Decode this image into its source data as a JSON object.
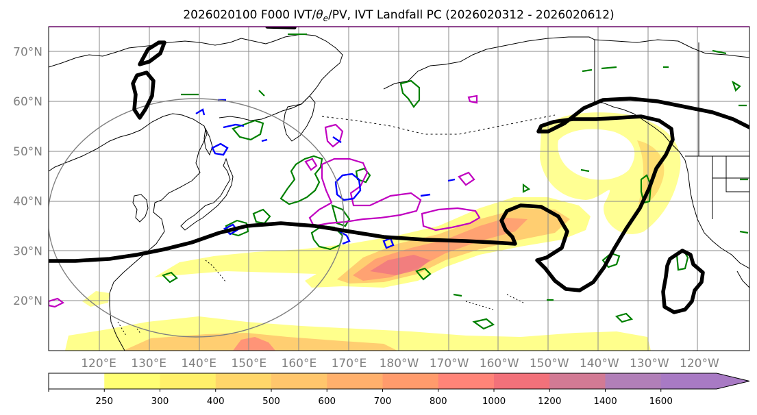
{
  "chart_data": {
    "type": "heatmap",
    "title": "2026020100 F000 IVT/θe/PV, IVT Landfall PC (2026020312 - 2026020612)",
    "title_parts": {
      "prefix": "2026020100 F000 IVT/",
      "theta": "θ",
      "theta_sub": "e",
      "suffix": "/PV, IVT Landfall PC (2026020312 - 2026020612)"
    },
    "map": {
      "projection": "PlateCarree (central_longitude=180)",
      "lon_range": [
        110,
        -110
      ],
      "lat_range": [
        10,
        75
      ],
      "lat_ticks": [
        {
          "value": 20,
          "label": "20°N"
        },
        {
          "value": 30,
          "label": "30°N"
        },
        {
          "value": 40,
          "label": "40°N"
        },
        {
          "value": 50,
          "label": "50°N"
        },
        {
          "value": 60,
          "label": "60°N"
        },
        {
          "value": 70,
          "label": "70°N"
        }
      ],
      "lon_ticks": [
        {
          "value": 120,
          "label": "120°E"
        },
        {
          "value": 130,
          "label": "130°E"
        },
        {
          "value": 140,
          "label": "140°E"
        },
        {
          "value": 150,
          "label": "150°E"
        },
        {
          "value": 160,
          "label": "160°E"
        },
        {
          "value": 170,
          "label": "170°E"
        },
        {
          "value": 180,
          "label": "180°W"
        },
        {
          "value": 190,
          "label": "170°W"
        },
        {
          "value": 200,
          "label": "160°W"
        },
        {
          "value": 210,
          "label": "150°W"
        },
        {
          "value": 220,
          "label": "140°W"
        },
        {
          "value": 230,
          "label": "130°W"
        },
        {
          "value": 240,
          "label": "120°W"
        }
      ],
      "grid": true
    },
    "colorbar": {
      "levels": [
        250,
        300,
        400,
        500,
        600,
        700,
        800,
        1000,
        1200,
        1400,
        1600
      ],
      "labels": [
        "250",
        "300",
        "400",
        "500",
        "600",
        "700",
        "800",
        "1000",
        "1200",
        "1400",
        "1600"
      ],
      "colors": [
        "#ffffff",
        "#ffff74",
        "#fff06a",
        "#ffd66a",
        "#ffc66c",
        "#ffb06c",
        "#ff9b6c",
        "#ff8478",
        "#f2717a",
        "#d27a94",
        "#b17fb8",
        "#a87ac4"
      ],
      "extend": "max"
    },
    "contours": {
      "ivt_color": "#ffd070",
      "theta_e_color": "#008000",
      "pv_negative_color": "#0000ff",
      "pv_color": "#c000c0",
      "landfall_pc_color": "#000000",
      "range_ring_color": "#808080"
    }
  }
}
